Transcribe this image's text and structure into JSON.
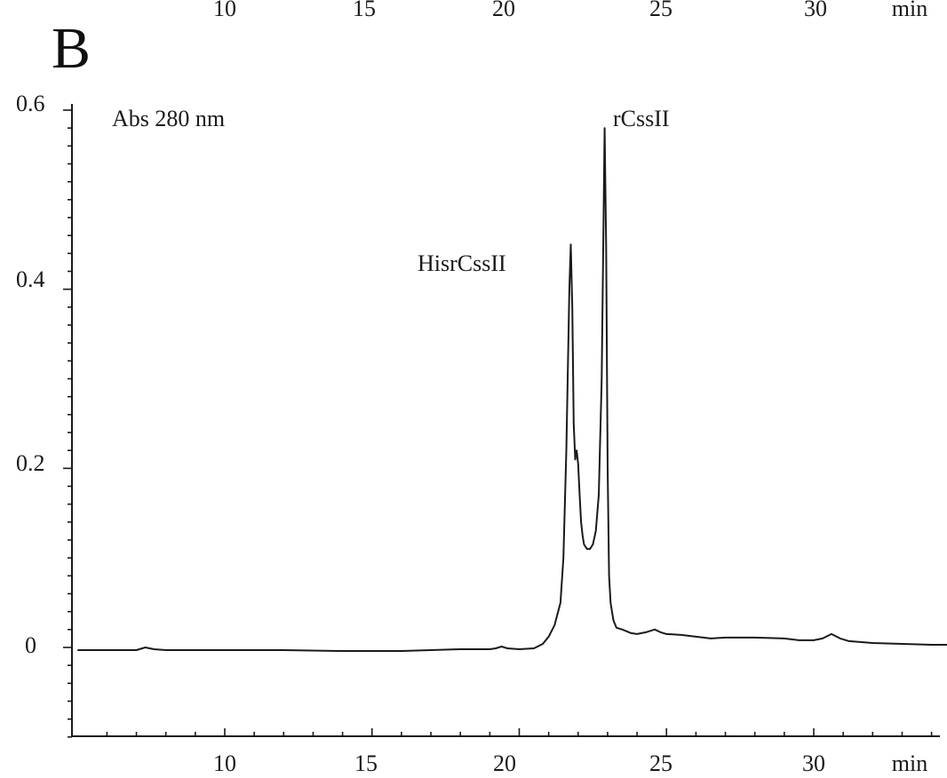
{
  "top_strip": {
    "tick_labels": [
      "10",
      "15",
      "20",
      "25",
      "30"
    ],
    "unit": "min"
  },
  "panel_label": "B",
  "chart_data": {
    "type": "line",
    "title": "",
    "xlabel": "min",
    "ylabel": "",
    "xlim": [
      5,
      35
    ],
    "ylim": [
      -0.1,
      0.6
    ],
    "x_ticks": [
      10,
      15,
      20,
      25,
      30
    ],
    "x_tick_labels": [
      "10",
      "15",
      "20",
      "25",
      "30"
    ],
    "y_ticks": [
      0,
      0.2,
      0.4,
      0.6
    ],
    "y_tick_labels": [
      "0",
      "0.2",
      "0.4",
      "0.6"
    ],
    "grid": false,
    "annotations": [
      {
        "text": "Abs 280 nm",
        "x": 6.3,
        "y": 0.575
      },
      {
        "text": "HisrCssII",
        "x": 18.7,
        "y": 0.42
      },
      {
        "text": "rCssII",
        "x": 23.7,
        "y": 0.575
      }
    ],
    "series": [
      {
        "x": [
          5.0,
          6.0,
          7.0,
          7.3,
          7.6,
          8.0,
          10.0,
          12.0,
          14.0,
          16.0,
          17.0,
          18.0,
          19.0,
          19.2,
          19.4,
          19.6,
          20.0,
          20.5,
          20.8,
          21.0,
          21.2,
          21.4,
          21.5,
          21.6,
          21.7,
          21.75,
          21.8,
          21.85,
          21.9,
          21.95,
          22.0,
          22.05,
          22.1,
          22.15,
          22.2,
          22.3,
          22.4,
          22.5,
          22.6,
          22.7,
          22.8,
          22.9,
          22.95,
          23.0,
          23.05,
          23.1,
          23.15,
          23.2,
          23.3,
          23.5,
          23.8,
          24.0,
          24.3,
          24.6,
          24.8,
          25.0,
          25.5,
          26.0,
          26.5,
          27.0,
          28.0,
          29.0,
          29.5,
          30.0,
          30.3,
          30.6,
          30.9,
          31.2,
          32.0,
          33.0,
          34.0,
          34.8
        ],
        "y": [
          -0.003,
          -0.003,
          -0.003,
          0.0,
          -0.002,
          -0.003,
          -0.003,
          -0.003,
          -0.004,
          -0.004,
          -0.003,
          -0.002,
          -0.002,
          -0.001,
          0.001,
          -0.001,
          -0.002,
          -0.001,
          0.004,
          0.012,
          0.025,
          0.05,
          0.1,
          0.22,
          0.4,
          0.45,
          0.38,
          0.25,
          0.21,
          0.22,
          0.205,
          0.17,
          0.14,
          0.125,
          0.115,
          0.11,
          0.11,
          0.115,
          0.13,
          0.17,
          0.3,
          0.58,
          0.45,
          0.2,
          0.08,
          0.05,
          0.04,
          0.03,
          0.022,
          0.02,
          0.016,
          0.015,
          0.017,
          0.02,
          0.017,
          0.015,
          0.014,
          0.012,
          0.01,
          0.011,
          0.011,
          0.01,
          0.008,
          0.008,
          0.01,
          0.015,
          0.01,
          0.007,
          0.005,
          0.004,
          0.003,
          0.003
        ]
      }
    ]
  }
}
